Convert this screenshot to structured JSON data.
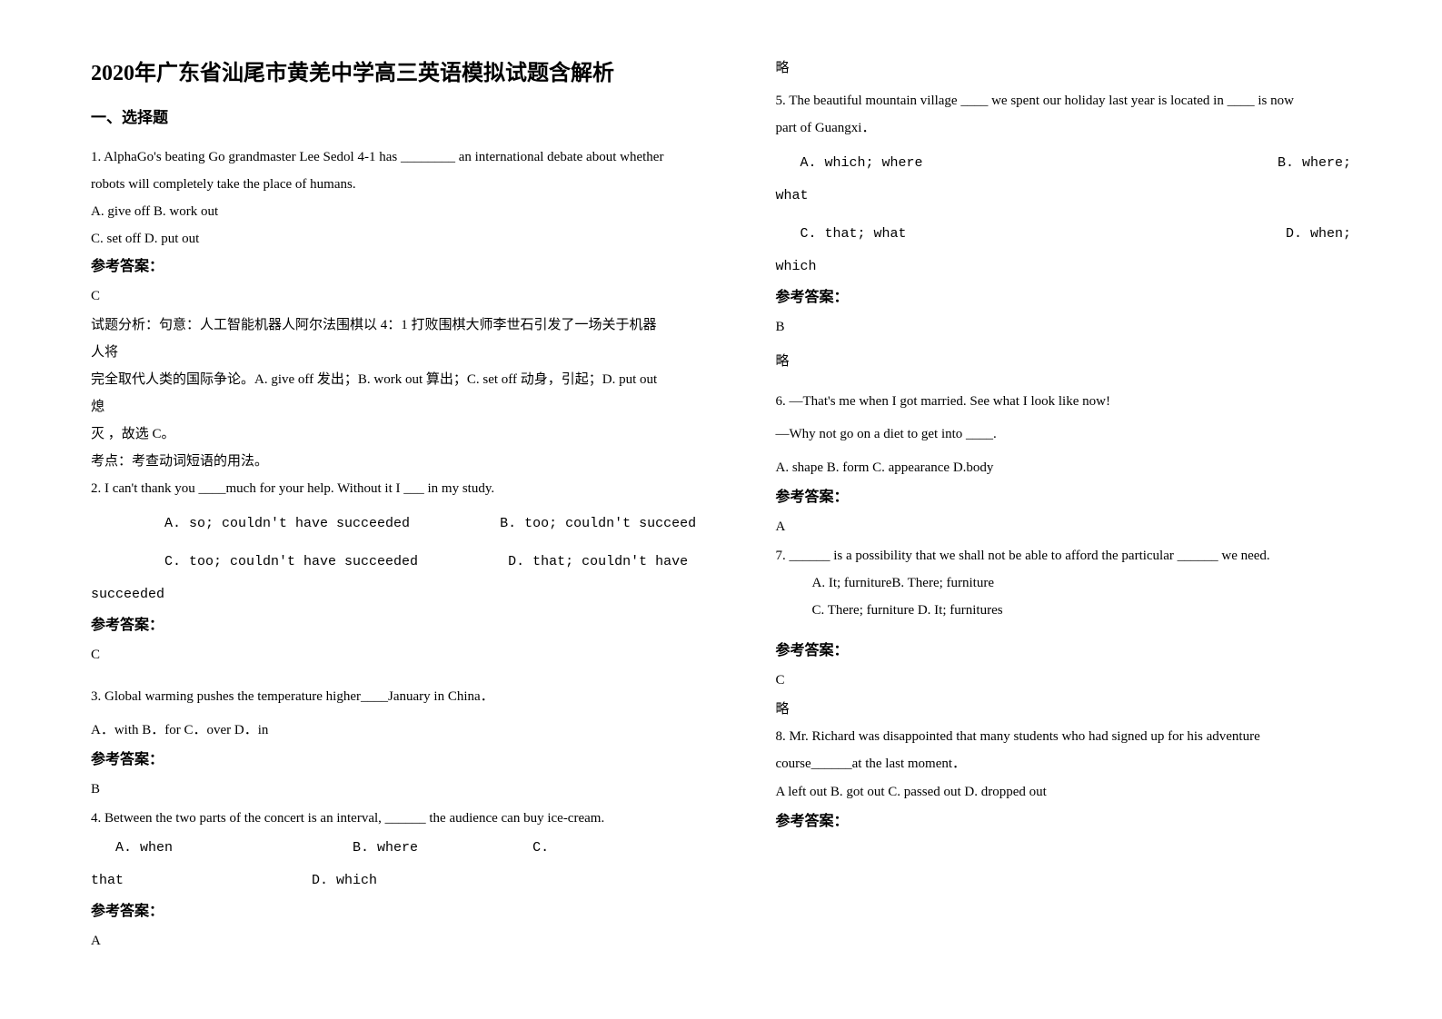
{
  "title": "2020年广东省汕尾市黄羌中学高三英语模拟试题含解析",
  "section1": "一、选择题",
  "q1": {
    "stem1": "1. AlphaGo's beating Go grandmaster Lee Sedol 4-1 has ________ an international debate about whether",
    "stem2": "robots will completely take the place of humans.",
    "optA": "A. give off   B. work out",
    "optC": "C. set off   D. put out",
    "ansLabel": "参考答案：",
    "ans": "C",
    "exp1": "试题分析：句意：人工智能机器人阿尔法围棋以 4：1 打败围棋大师李世石引发了一场关于机器人将",
    "exp2": "完全取代人类的国际争论。A. give off 发出；B. work out 算出；C. set off 动身，引起；D. put out 熄",
    "exp3": "灭 ，故选 C。",
    "exp4": "考点：考查动词短语的用法。"
  },
  "q2": {
    "stem": "2. I can't thank you ____much for your help. Without it I ___ in my study.",
    "row1": "         A. so; couldn't have succeeded           B. too; couldn't succeed",
    "row2": "         C. too; couldn't have succeeded           D. that; couldn't have",
    "row2b": "succeeded",
    "ansLabel": "参考答案：",
    "ans": "C"
  },
  "q3": {
    "stem": "3. Global warming pushes the temperature higher____January in China．",
    "opts": "A．with              B．for              C．over               D．in",
    "ansLabel": "参考答案：",
    "ans": "B"
  },
  "q4": {
    "stem": "4. Between the two parts of the concert is an interval, ______ the audience can buy ice-cream.",
    "row1": "   A. when                      B. where              C.",
    "row2": "that                       D. which",
    "ansLabel": "参考答案：",
    "ans": "A"
  },
  "lue": "略",
  "q5": {
    "stem1": "5. The beautiful mountain village ____ we spent our holiday  last  year  is  located  in  ____  is now",
    "stem2": "part of Guangxi．",
    "row1a": "   A. which; where",
    "row1b": "B. where;",
    "row1c": "what",
    "row2a": "   C. that; what",
    "row2b": "D. when;",
    "row2c": "which",
    "ansLabel": "参考答案：",
    "ans": "B"
  },
  "q6": {
    "stem1": "6. —That's me when I got married. See what I look like now!",
    "stem2": "—Why not go on a diet to get into ____.",
    "opts": "   A. shape         B. form           C. appearance           D.body",
    "ansLabel": "参考答案：",
    "ans": "A"
  },
  "q7": {
    "stem": "7. ______ is a possibility that we shall not be able to afford the particular ______ we need.",
    "opt1": "A. It; furnitureB. There; furniture",
    "opt2": "C. There; furniture D. It; furnitures",
    "ansLabel": "参考答案：",
    "ans": "C"
  },
  "q8": {
    "stem1": "8. Mr. Richard was disappointed that many students who had signed up for his adventure",
    "stem2": "course______at the last moment．",
    "opts": "A left out         B. got out             C. passed out             D. dropped out",
    "ansLabel": "参考答案："
  }
}
